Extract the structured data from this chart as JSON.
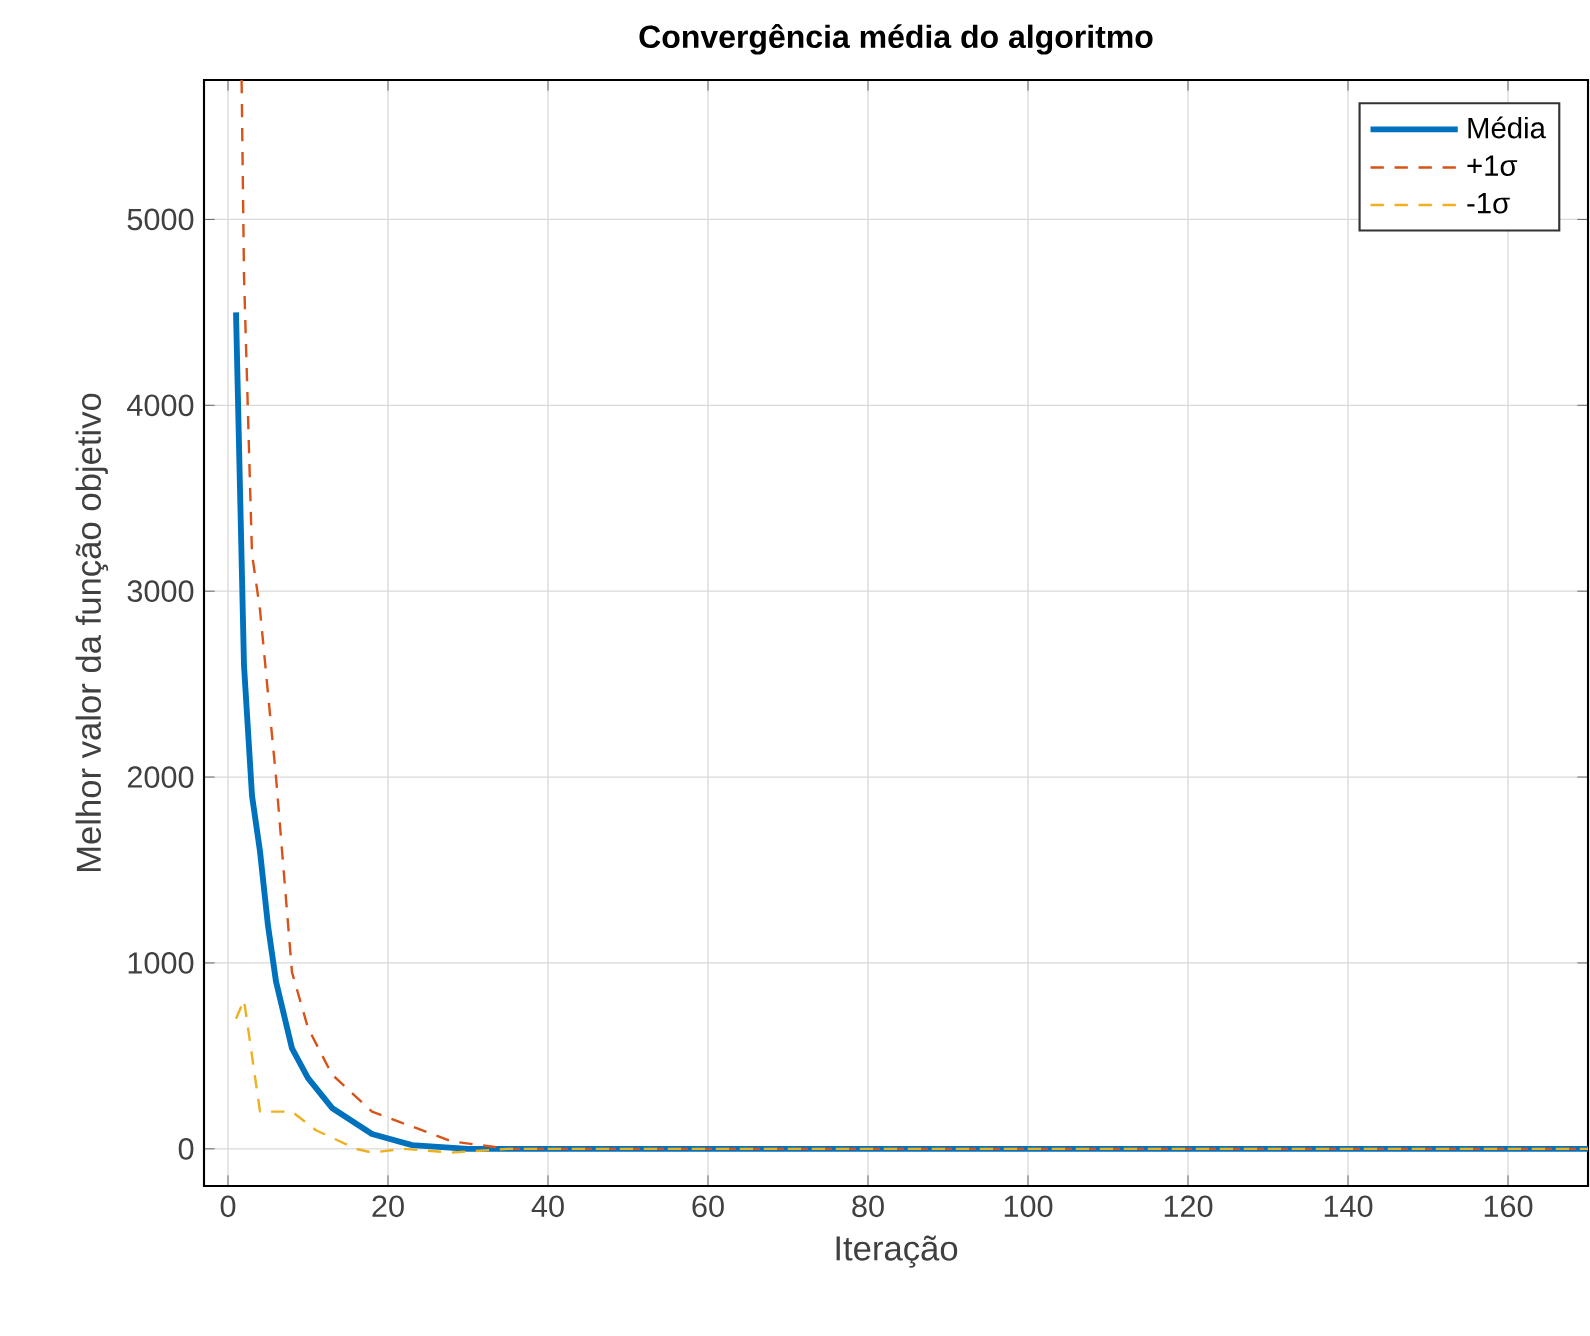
{
  "chart_data": {
    "type": "line",
    "title": "Convergência média do algoritmo",
    "xlabel": "Iteração",
    "ylabel": "Melhor valor da função objetivo",
    "xlim": [
      -3,
      170
    ],
    "ylim": [
      -200,
      5750
    ],
    "xticks": [
      0,
      20,
      40,
      60,
      80,
      100,
      120,
      140,
      160
    ],
    "yticks": [
      0,
      1000,
      2000,
      3000,
      4000,
      5000
    ],
    "grid": true,
    "legend": "top right",
    "marker": "none",
    "series": [
      {
        "name": "Média",
        "color": "#0072bd",
        "line_style": "solid",
        "x": [
          1,
          2,
          3,
          4,
          5,
          6,
          8,
          10,
          13,
          18,
          23,
          30,
          40,
          170
        ],
        "values": [
          4500,
          2600,
          1900,
          1600,
          1200,
          900,
          540,
          380,
          220,
          80,
          20,
          0,
          0,
          0
        ]
      },
      {
        "name": "+1σ",
        "color": "#d95319",
        "line_style": "dashed",
        "x": [
          1.7,
          2,
          3,
          4,
          6,
          8,
          10,
          13,
          18,
          23,
          28,
          35,
          40,
          170
        ],
        "values": [
          5750,
          4700,
          3200,
          2900,
          2000,
          950,
          650,
          400,
          200,
          120,
          40,
          0,
          0,
          0
        ]
      },
      {
        "name": "-1σ",
        "color": "#edb120",
        "line_style": "dashed",
        "x": [
          1,
          2,
          3,
          4,
          8,
          11,
          16,
          18,
          22,
          28,
          35,
          170
        ],
        "values": [
          700,
          800,
          500,
          200,
          200,
          100,
          0,
          -20,
          0,
          -20,
          0,
          0
        ]
      }
    ]
  }
}
